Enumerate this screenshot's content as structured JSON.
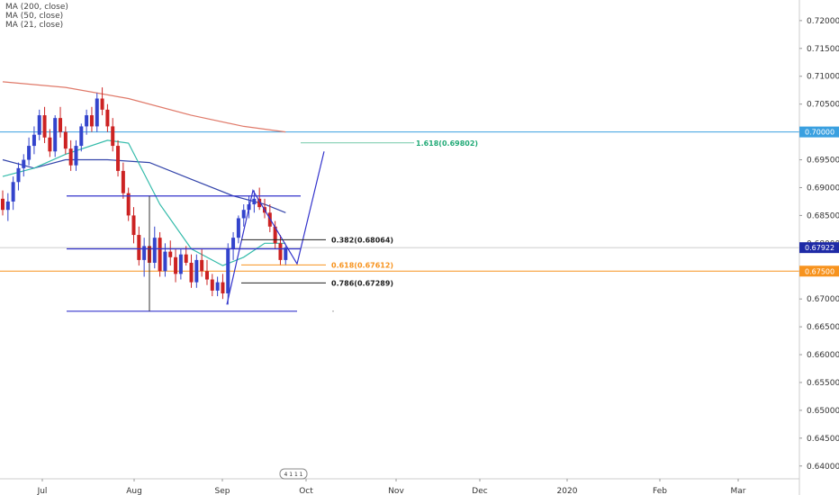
{
  "legend": [
    "MA (200, close)",
    "MA (50, close)",
    "MA (21, close)"
  ],
  "colors": {
    "up": "#3344cc",
    "down": "#cc2222",
    "ma200": "#e07a6a",
    "ma50": "#3344aa",
    "ma21": "#33bbaa",
    "drawing": "#3333cc",
    "level_blue": "#3aa0e0",
    "level_orange": "#f7931e",
    "price_tag": "#1e2aa6"
  },
  "badge": "4 1 1 1",
  "chart_data": {
    "type": "candlestick",
    "y_ticks": [
      "0.72000",
      "0.71500",
      "0.71000",
      "0.70500",
      "0.70000",
      "0.69500",
      "0.69000",
      "0.68500",
      "0.68000",
      "0.67500",
      "0.67000",
      "0.66500",
      "0.66000",
      "0.65500",
      "0.65000",
      "0.64500",
      "0.64000"
    ],
    "ylim": [
      0.6377,
      0.7237
    ],
    "x_ticks": [
      "Jul",
      "Aug",
      "Sep",
      "Oct",
      "Nov",
      "Dec",
      "2020",
      "Feb",
      "Mar"
    ],
    "price_tags": [
      {
        "label": "0.70000",
        "value": 0.7,
        "color": "#3aa0e0"
      },
      {
        "label": "0.67922",
        "value": 0.67922,
        "color": "#1e2aa6"
      },
      {
        "label": "0.67500",
        "value": 0.675,
        "color": "#f7931e"
      }
    ],
    "fib_levels": [
      {
        "label": "1.618(0.69802)",
        "value": 0.69802,
        "color": "#22aa77"
      },
      {
        "label": "0.382(0.68064)",
        "value": 0.68064,
        "color": "#222222"
      },
      {
        "label": "0.618(0.67612)",
        "value": 0.67612,
        "color": "#f7931e"
      },
      {
        "label": "0.786(0.67289)",
        "value": 0.67289,
        "color": "#222222"
      }
    ],
    "candles": [
      [
        0.688,
        0.6895,
        0.685,
        0.686
      ],
      [
        0.686,
        0.689,
        0.684,
        0.6875
      ],
      [
        0.6875,
        0.692,
        0.686,
        0.691
      ],
      [
        0.691,
        0.6945,
        0.6895,
        0.6935
      ],
      [
        0.6935,
        0.696,
        0.692,
        0.695
      ],
      [
        0.695,
        0.699,
        0.694,
        0.6975
      ],
      [
        0.6975,
        0.701,
        0.696,
        0.6995
      ],
      [
        0.6995,
        0.704,
        0.6985,
        0.703
      ],
      [
        0.703,
        0.7045,
        0.698,
        0.699
      ],
      [
        0.699,
        0.7005,
        0.6955,
        0.6965
      ],
      [
        0.6965,
        0.703,
        0.6955,
        0.7025
      ],
      [
        0.7025,
        0.7045,
        0.699,
        0.7
      ],
      [
        0.7,
        0.701,
        0.696,
        0.697
      ],
      [
        0.697,
        0.6985,
        0.693,
        0.694
      ],
      [
        0.694,
        0.6985,
        0.693,
        0.6975
      ],
      [
        0.6975,
        0.7015,
        0.6965,
        0.701
      ],
      [
        0.701,
        0.704,
        0.6995,
        0.703
      ],
      [
        0.703,
        0.7045,
        0.7,
        0.701
      ],
      [
        0.701,
        0.707,
        0.7,
        0.706
      ],
      [
        0.706,
        0.708,
        0.703,
        0.704
      ],
      [
        0.704,
        0.705,
        0.7,
        0.701
      ],
      [
        0.701,
        0.7025,
        0.6965,
        0.6975
      ],
      [
        0.6975,
        0.6985,
        0.692,
        0.693
      ],
      [
        0.693,
        0.6945,
        0.688,
        0.689
      ],
      [
        0.689,
        0.69,
        0.684,
        0.685
      ],
      [
        0.685,
        0.6865,
        0.68,
        0.6815
      ],
      [
        0.6815,
        0.683,
        0.676,
        0.677
      ],
      [
        0.677,
        0.681,
        0.674,
        0.6795
      ],
      [
        0.6795,
        0.681,
        0.675,
        0.6765
      ],
      [
        0.6765,
        0.683,
        0.6755,
        0.681
      ],
      [
        0.681,
        0.682,
        0.674,
        0.675
      ],
      [
        0.675,
        0.68,
        0.674,
        0.6785
      ],
      [
        0.6785,
        0.6805,
        0.676,
        0.6775
      ],
      [
        0.6775,
        0.679,
        0.673,
        0.6745
      ],
      [
        0.6745,
        0.679,
        0.6735,
        0.678
      ],
      [
        0.678,
        0.6795,
        0.676,
        0.6765
      ],
      [
        0.6765,
        0.678,
        0.672,
        0.673
      ],
      [
        0.673,
        0.678,
        0.672,
        0.677
      ],
      [
        0.677,
        0.679,
        0.674,
        0.675
      ],
      [
        0.675,
        0.677,
        0.6725,
        0.6735
      ],
      [
        0.6735,
        0.6745,
        0.6705,
        0.6715
      ],
      [
        0.6715,
        0.674,
        0.6705,
        0.673
      ],
      [
        0.673,
        0.6745,
        0.67,
        0.671
      ],
      [
        0.671,
        0.68,
        0.669,
        0.679
      ],
      [
        0.679,
        0.682,
        0.677,
        0.681
      ],
      [
        0.681,
        0.685,
        0.68,
        0.6845
      ],
      [
        0.6845,
        0.687,
        0.683,
        0.686
      ],
      [
        0.686,
        0.6885,
        0.6845,
        0.687
      ],
      [
        0.687,
        0.6895,
        0.6855,
        0.688
      ],
      [
        0.688,
        0.69,
        0.686,
        0.6865
      ],
      [
        0.6865,
        0.688,
        0.6845,
        0.6855
      ],
      [
        0.6855,
        0.687,
        0.682,
        0.683
      ],
      [
        0.683,
        0.684,
        0.679,
        0.68
      ],
      [
        0.68,
        0.6815,
        0.676,
        0.677
      ],
      [
        0.677,
        0.6795,
        0.676,
        0.6792
      ]
    ],
    "ma200": [
      [
        0,
        0.709
      ],
      [
        12,
        0.708
      ],
      [
        24,
        0.706
      ],
      [
        36,
        0.703
      ],
      [
        46,
        0.701
      ],
      [
        54,
        0.7
      ]
    ],
    "ma50": [
      [
        0,
        0.695
      ],
      [
        6,
        0.6935
      ],
      [
        12,
        0.695
      ],
      [
        20,
        0.695
      ],
      [
        28,
        0.6945
      ],
      [
        36,
        0.6915
      ],
      [
        44,
        0.6885
      ],
      [
        50,
        0.687
      ],
      [
        54,
        0.6855
      ]
    ],
    "ma21": [
      [
        0,
        0.692
      ],
      [
        6,
        0.6935
      ],
      [
        12,
        0.696
      ],
      [
        20,
        0.6985
      ],
      [
        24,
        0.698
      ],
      [
        30,
        0.687
      ],
      [
        36,
        0.679
      ],
      [
        42,
        0.676
      ],
      [
        46,
        0.6775
      ],
      [
        50,
        0.68
      ],
      [
        54,
        0.68
      ]
    ]
  }
}
